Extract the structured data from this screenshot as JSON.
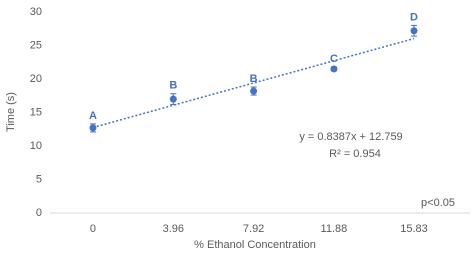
{
  "chart_data": {
    "type": "scatter",
    "x_label": "% Ethanol Concentration",
    "y_label": "Time (s)",
    "x": [
      0,
      3.96,
      7.92,
      11.88,
      15.83
    ],
    "series": [
      {
        "color": "#4472c4",
        "values": [
          12.7,
          17.0,
          18.2,
          21.5,
          27.2
        ],
        "errors": [
          0.6,
          0.8,
          0.6,
          0.3,
          0.8
        ],
        "point_labels": [
          "A",
          "B",
          "B",
          "C",
          "D"
        ]
      }
    ],
    "xlim": [
      -2.12,
      18.59
    ],
    "ylim": [
      0,
      30
    ],
    "xticks": [
      0,
      3.96,
      7.92,
      11.88,
      15.83
    ],
    "yticks": [
      0,
      5,
      10,
      15,
      20,
      25,
      30
    ],
    "trendline": {
      "x": [
        0,
        15.83
      ],
      "values": [
        12.76,
        26.04
      ],
      "equation": "y = 0.8387x + 12.759",
      "r_squared": "R² = 0.954"
    },
    "annotations": [
      "p<0.05"
    ]
  }
}
